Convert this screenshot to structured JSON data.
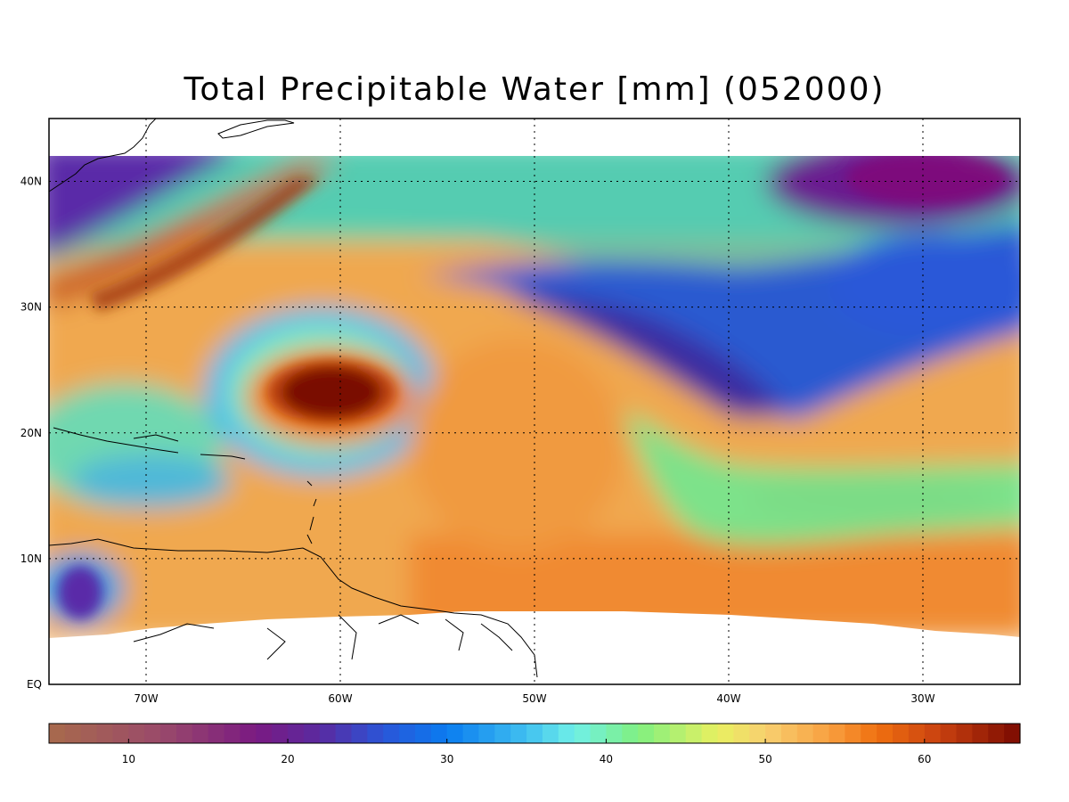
{
  "map": {
    "title": "Total Precipitable Water [mm]  (052000)",
    "lat_labels": [
      "40N",
      "30N",
      "20N",
      "10N",
      "EQ"
    ],
    "lon_labels": [
      "70W",
      "60W",
      "50W",
      "40W",
      "30W"
    ],
    "lat_range": [
      0,
      45
    ],
    "lon_range": [
      -75,
      -25
    ],
    "data_lat_top": 42,
    "gridlines": "dotted",
    "colorbar": {
      "ticks": [
        "10",
        "20",
        "30",
        "40",
        "50",
        "60"
      ],
      "tick_values": [
        10,
        20,
        30,
        40,
        50,
        60
      ],
      "range": [
        5,
        66
      ],
      "stops": [
        {
          "v": 5,
          "color": "#a86a4c"
        },
        {
          "v": 12,
          "color": "#9a4a6a"
        },
        {
          "v": 18,
          "color": "#7a1a82"
        },
        {
          "v": 22,
          "color": "#5a2aa0"
        },
        {
          "v": 26,
          "color": "#2a55d8"
        },
        {
          "v": 30,
          "color": "#0a7cf0"
        },
        {
          "v": 35,
          "color": "#40c0f0"
        },
        {
          "v": 38,
          "color": "#70f0e8"
        },
        {
          "v": 42,
          "color": "#80f080"
        },
        {
          "v": 47,
          "color": "#e8f060"
        },
        {
          "v": 50,
          "color": "#f8d070"
        },
        {
          "v": 54,
          "color": "#f8a040"
        },
        {
          "v": 57,
          "color": "#f07010"
        },
        {
          "v": 61,
          "color": "#c84010"
        },
        {
          "v": 66,
          "color": "#7a0a00"
        }
      ]
    }
  },
  "field_features": [
    {
      "feature": "hurricane-core",
      "lon": -60.2,
      "lat": 23.5,
      "value": 65
    },
    {
      "feature": "western-moist-band",
      "value": 60
    },
    {
      "feature": "northeast-dry-pocket",
      "value": 20
    },
    {
      "feature": "central-dry-tongue",
      "value": 25
    },
    {
      "feature": "southeast-moist-zone",
      "value": 57
    }
  ]
}
